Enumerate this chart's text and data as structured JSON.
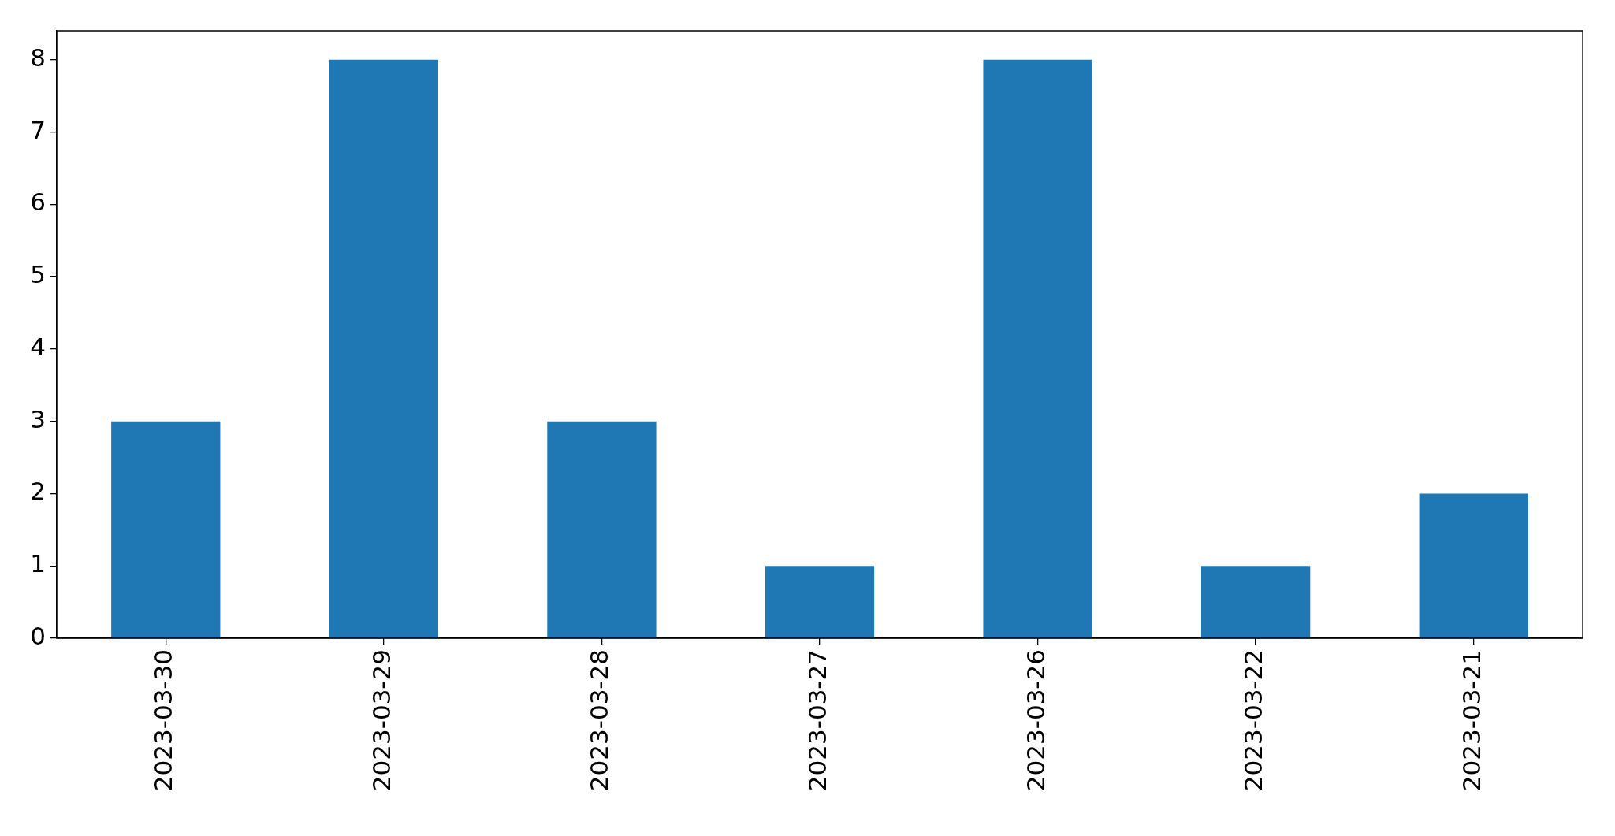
{
  "chart_data": {
    "type": "bar",
    "categories": [
      "2023-03-30",
      "2023-03-29",
      "2023-03-28",
      "2023-03-27",
      "2023-03-26",
      "2023-03-22",
      "2023-03-21"
    ],
    "values": [
      3,
      8,
      3,
      1,
      8,
      1,
      2
    ],
    "color": "#1f77b4",
    "ylim": [
      0,
      8.4
    ],
    "yticks": [
      0,
      1,
      2,
      3,
      4,
      5,
      6,
      7,
      8
    ]
  }
}
